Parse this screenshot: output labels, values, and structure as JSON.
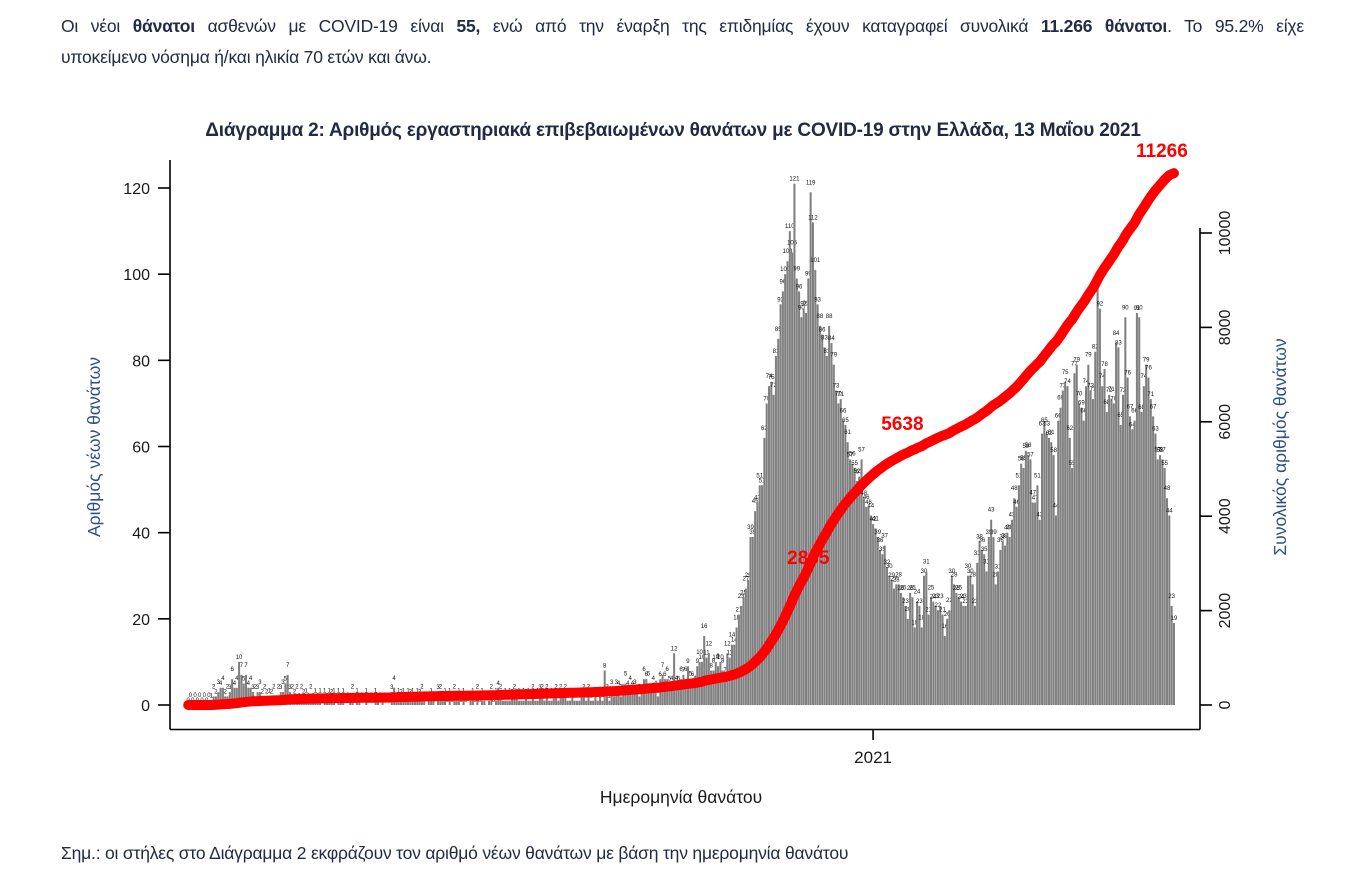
{
  "intro": {
    "line1_parts": [
      {
        "t": "Οι νέοι ",
        "b": 0
      },
      {
        "t": "θάνατοι",
        "b": 1
      },
      {
        "t": " ασθενών με COVID-19 είναι ",
        "b": 0
      },
      {
        "t": "55,",
        "b": 1
      },
      {
        "t": " ενώ από την έναρξη της επιδημίας έχουν καταγραφεί συνολικά ",
        "b": 0
      },
      {
        "t": "11.266 θάνατοι",
        "b": 1
      },
      {
        "t": ".  Το 95.2% είχε",
        "b": 0
      }
    ],
    "line2": "υποκείμενο νόσημα ή/και ηλικία 70 ετών και άνω."
  },
  "note": "Σημ.: οι στήλες στο Διάγραμμα 2 εκφράζουν τον αριθμό νέων θανάτων με βάση την ημερομηνία θανάτου",
  "colors": {
    "body_text": "#222b45",
    "axis_title_blue": "#2d5186",
    "tick_text": "#1a1a1a",
    "bar_gray": "#808080",
    "line_red": "#ff0000"
  },
  "chart_data": {
    "type": "bar",
    "title": "Διάγραμμα 2: Αριθμός εργαστηριακά επιβεβαιωμένων θανάτων με COVID-19 στην Ελλάδα, 13 Μαΐου 2021",
    "xlabel": "Ημερομηνία θανάτου",
    "ylabel_left": "Αριθμός νέων θανάτων",
    "ylabel_right": "Συνολικός αριθμός θανάτων",
    "y_left_ticks": [
      0,
      20,
      40,
      60,
      80,
      100,
      120
    ],
    "y_right_ticks": [
      0,
      2000,
      4000,
      6000,
      8000,
      10000
    ],
    "ylim_left": [
      0,
      125
    ],
    "ylim_right": [
      0,
      11500
    ],
    "grid": false,
    "x_tick": {
      "label": "2021",
      "day_index": 296
    },
    "bar_values_are_labeled": true,
    "cumulative_total": 11266,
    "line_annotations": [
      {
        "label": "2865",
        "value": 2865,
        "placement": "on-line"
      },
      {
        "label": "5638",
        "value": 5638,
        "placement": "left-of-line"
      },
      {
        "label": "11266",
        "value": 11266,
        "placement": "end"
      }
    ],
    "daily_new_deaths": [
      0,
      0,
      0,
      0,
      0,
      0,
      0,
      0,
      0,
      0,
      1,
      2,
      2,
      3,
      4,
      4,
      2,
      2,
      3,
      6,
      4,
      4,
      10,
      7,
      5,
      7,
      4,
      4,
      3,
      2,
      3,
      3,
      2,
      2,
      2,
      1,
      2,
      2,
      0,
      2,
      3,
      3,
      5,
      7,
      3,
      2,
      2,
      2,
      1,
      2,
      2,
      1,
      1,
      2,
      1,
      1,
      1,
      1,
      0,
      1,
      1,
      1,
      2,
      1,
      0,
      1,
      1,
      1,
      0,
      0,
      1,
      2,
      0,
      1,
      1,
      0,
      0,
      1,
      0,
      0,
      0,
      1,
      1,
      0,
      1,
      0,
      0,
      0,
      3,
      4,
      1,
      1,
      2,
      1,
      1,
      1,
      2,
      1,
      1,
      1,
      2,
      2,
      1,
      0,
      1,
      1,
      1,
      0,
      3,
      2,
      1,
      1,
      0,
      1,
      0,
      2,
      1,
      1,
      0,
      1,
      0,
      0,
      1,
      1,
      0,
      2,
      0,
      1,
      1,
      0,
      1,
      2,
      0,
      1,
      4,
      2,
      1,
      1,
      1,
      1,
      2,
      2,
      2,
      1,
      1,
      1,
      2,
      1,
      1,
      2,
      1,
      1,
      3,
      2,
      1,
      2,
      1,
      1,
      2,
      2,
      1,
      2,
      2,
      2,
      1,
      1,
      2,
      1,
      1,
      1,
      2,
      2,
      1,
      2,
      1,
      1,
      2,
      1,
      2,
      1,
      8,
      2,
      1,
      3,
      2,
      3,
      4,
      2,
      3,
      5,
      4,
      4,
      4,
      3,
      3,
      2,
      3,
      6,
      6,
      5,
      3,
      4,
      4,
      2,
      6,
      7,
      6,
      6,
      5,
      4,
      12,
      4,
      5,
      6,
      7,
      6,
      9,
      5,
      6,
      4,
      9,
      10,
      10,
      16,
      11,
      12,
      8,
      8,
      10,
      9,
      10,
      8,
      7,
      12,
      11,
      14,
      14,
      18,
      21,
      23,
      25,
      27,
      29,
      39,
      39,
      45,
      47,
      51,
      51,
      62,
      70,
      74,
      75,
      72,
      81,
      85,
      93,
      96,
      100,
      103,
      110,
      105,
      121,
      99,
      96,
      90,
      92,
      91,
      99,
      119,
      112,
      101,
      93,
      88,
      86,
      83,
      81,
      88,
      84,
      79,
      73,
      70,
      71,
      66,
      65,
      61,
      57,
      56,
      55,
      52,
      53,
      57,
      48,
      46,
      46,
      44,
      42,
      41,
      39,
      36,
      35,
      37,
      32,
      30,
      29,
      27,
      28,
      28,
      26,
      25,
      23,
      20,
      26,
      25,
      18,
      24,
      23,
      18,
      30,
      31,
      21,
      25,
      24,
      23,
      22,
      23,
      21,
      16,
      20,
      22,
      30,
      28,
      26,
      25,
      24,
      23,
      23,
      30,
      30,
      28,
      23,
      33,
      38,
      36,
      35,
      31,
      39,
      43,
      39,
      28,
      31,
      36,
      38,
      37,
      40,
      39,
      43,
      48,
      46,
      51,
      56,
      55,
      59,
      58,
      57,
      47,
      47,
      51,
      43,
      63,
      65,
      63,
      62,
      61,
      58,
      44,
      66,
      69,
      73,
      75,
      74,
      62,
      55,
      77,
      79,
      70,
      69,
      66,
      74,
      79,
      73,
      71,
      82,
      97,
      92,
      74,
      78,
      68,
      72,
      71,
      70,
      84,
      83,
      65,
      72,
      90,
      76,
      67,
      64,
      66,
      91,
      90,
      68,
      74,
      79,
      76,
      71,
      67,
      63,
      57,
      58,
      57,
      55,
      48,
      44,
      23,
      19
    ]
  }
}
